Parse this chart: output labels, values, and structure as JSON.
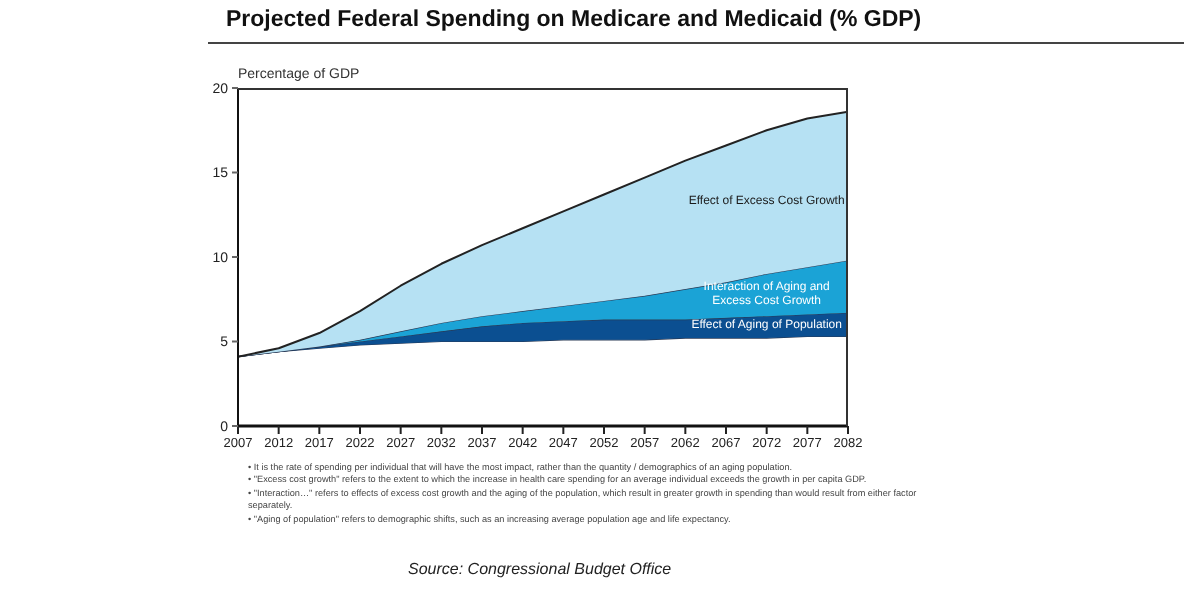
{
  "chart_data": {
    "type": "area",
    "stacked": true,
    "title": "Projected Federal Spending on Medicare and Medicaid (% GDP)",
    "ylabel": "Percentage of GDP",
    "x": [
      2007,
      2012,
      2017,
      2022,
      2027,
      2032,
      2037,
      2042,
      2047,
      2052,
      2057,
      2062,
      2067,
      2072,
      2077,
      2082
    ],
    "xlim": [
      2007,
      2082
    ],
    "xticks": [
      2007,
      2012,
      2017,
      2022,
      2027,
      2032,
      2037,
      2042,
      2047,
      2052,
      2057,
      2062,
      2067,
      2072,
      2077,
      2082
    ],
    "ylim": [
      0,
      20
    ],
    "yticks": [
      0,
      5,
      10,
      15,
      20
    ],
    "grid": false,
    "legend": false,
    "series": [
      {
        "color": "#ffffff",
        "values": [
          4.1,
          4.4,
          4.6,
          4.8,
          4.9,
          5.0,
          5.0,
          5.0,
          5.1,
          5.1,
          5.1,
          5.2,
          5.2,
          5.2,
          5.3,
          5.3
        ]
      },
      {
        "name": "Effect of Aging of Population",
        "color": "#0b4f91",
        "values": [
          0,
          0,
          0.1,
          0.2,
          0.4,
          0.6,
          0.9,
          1.1,
          1.1,
          1.2,
          1.2,
          1.1,
          1.2,
          1.3,
          1.3,
          1.4
        ]
      },
      {
        "name": "Interaction of Aging and Excess Cost Growth",
        "color": "#1ba3d6",
        "values": [
          0,
          0,
          0,
          0.1,
          0.3,
          0.5,
          0.6,
          0.7,
          0.9,
          1.1,
          1.4,
          1.8,
          2.1,
          2.5,
          2.8,
          3.1
        ]
      },
      {
        "name": "Effect of Excess Cost Growth",
        "color": "#b6e1f3",
        "values": [
          0,
          0.2,
          0.8,
          1.7,
          2.7,
          3.5,
          4.2,
          4.9,
          5.6,
          6.3,
          7.0,
          7.6,
          8.1,
          8.5,
          8.8,
          8.8
        ]
      }
    ],
    "annotations": [
      "• It is the rate of spending per individual that will have the most impact, rather than the quantity / demographics of an aging population.",
      "• \"Excess cost growth\" refers to the extent to which the increase in health care spending for an average individual exceeds the growth in per capita GDP.",
      "• \"Interaction…\" refers to effects of excess cost growth and the aging of the population, which result in greater growth in spending than would result from either factor separately.",
      "• \"Aging of population\" refers to demographic shifts, such as an increasing average population age and life expectancy.",
      "Source:  Congressional Budget Office"
    ]
  }
}
